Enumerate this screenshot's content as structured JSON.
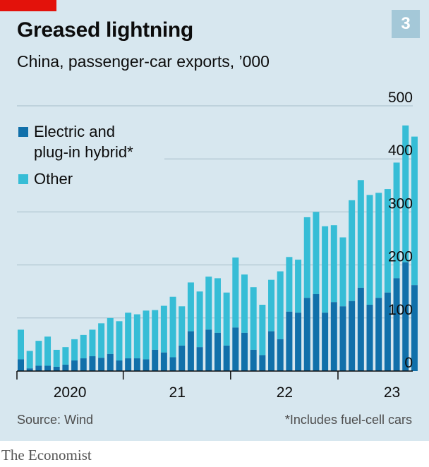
{
  "badge": "3",
  "source": "Source: Wind",
  "footnote": "*Includes fuel-cell cars",
  "brand": "The Economist",
  "colors": {
    "background": "#d7e7ef",
    "electric": "#1170aa",
    "other": "#36bdd6",
    "grid": "#a6bcc9",
    "accent": "#e3120b"
  },
  "chart_data": {
    "type": "bar",
    "stacked": true,
    "title": "Greased lightning",
    "subtitle": "China, passenger-car exports, ’000",
    "ylim": [
      0,
      500
    ],
    "yticks": [
      0,
      100,
      200,
      300,
      400,
      500
    ],
    "ytick_position": "right",
    "grid": true,
    "legend_position": "top-left",
    "legend": [
      {
        "key": "electric",
        "lines": [
          "Electric and",
          "plug-in hybrid*"
        ]
      },
      {
        "key": "other",
        "lines": [
          "Other"
        ]
      }
    ],
    "xaxis": {
      "year_labels": [
        {
          "label": "2020",
          "start": 0
        },
        {
          "label": "21",
          "start": 12
        },
        {
          "label": "22",
          "start": 24
        },
        {
          "label": "23",
          "start": 36
        }
      ],
      "boundaries": [
        0,
        12,
        24,
        36,
        48
      ]
    },
    "x": [
      "2020-01",
      "2020-02",
      "2020-03",
      "2020-04",
      "2020-05",
      "2020-06",
      "2020-07",
      "2020-08",
      "2020-09",
      "2020-10",
      "2020-11",
      "2020-12",
      "2021-01",
      "2021-02",
      "2021-03",
      "2021-04",
      "2021-05",
      "2021-06",
      "2021-07",
      "2021-08",
      "2021-09",
      "2021-10",
      "2021-11",
      "2021-12",
      "2022-01",
      "2022-02",
      "2022-03",
      "2022-04",
      "2022-05",
      "2022-06",
      "2022-07",
      "2022-08",
      "2022-09",
      "2022-10",
      "2022-11",
      "2022-12",
      "2023-01",
      "2023-02",
      "2023-03",
      "2023-04",
      "2023-05",
      "2023-06",
      "2023-07",
      "2023-08",
      "2023-09",
      "2023-10",
      "2023-11"
    ],
    "series": [
      {
        "name": "Electric and plug-in hybrid*",
        "key": "electric",
        "values": [
          22,
          5,
          10,
          10,
          8,
          12,
          20,
          24,
          28,
          25,
          32,
          20,
          24,
          24,
          22,
          40,
          35,
          26,
          48,
          75,
          45,
          78,
          72,
          48,
          82,
          72,
          40,
          30,
          75,
          60,
          112,
          110,
          138,
          145,
          110,
          130,
          122,
          132,
          157,
          125,
          138,
          148,
          175,
          205,
          162,
          0,
          0
        ]
      },
      {
        "name": "Other",
        "key": "other",
        "values": [
          56,
          33,
          47,
          55,
          32,
          33,
          40,
          44,
          50,
          65,
          68,
          74,
          86,
          83,
          92,
          75,
          88,
          114,
          74,
          92,
          105,
          100,
          103,
          100,
          132,
          110,
          118,
          95,
          97,
          128,
          103,
          100,
          152,
          155,
          163,
          145,
          130,
          190,
          203,
          207,
          198,
          195,
          218,
          258,
          280,
          0,
          0
        ]
      }
    ]
  }
}
